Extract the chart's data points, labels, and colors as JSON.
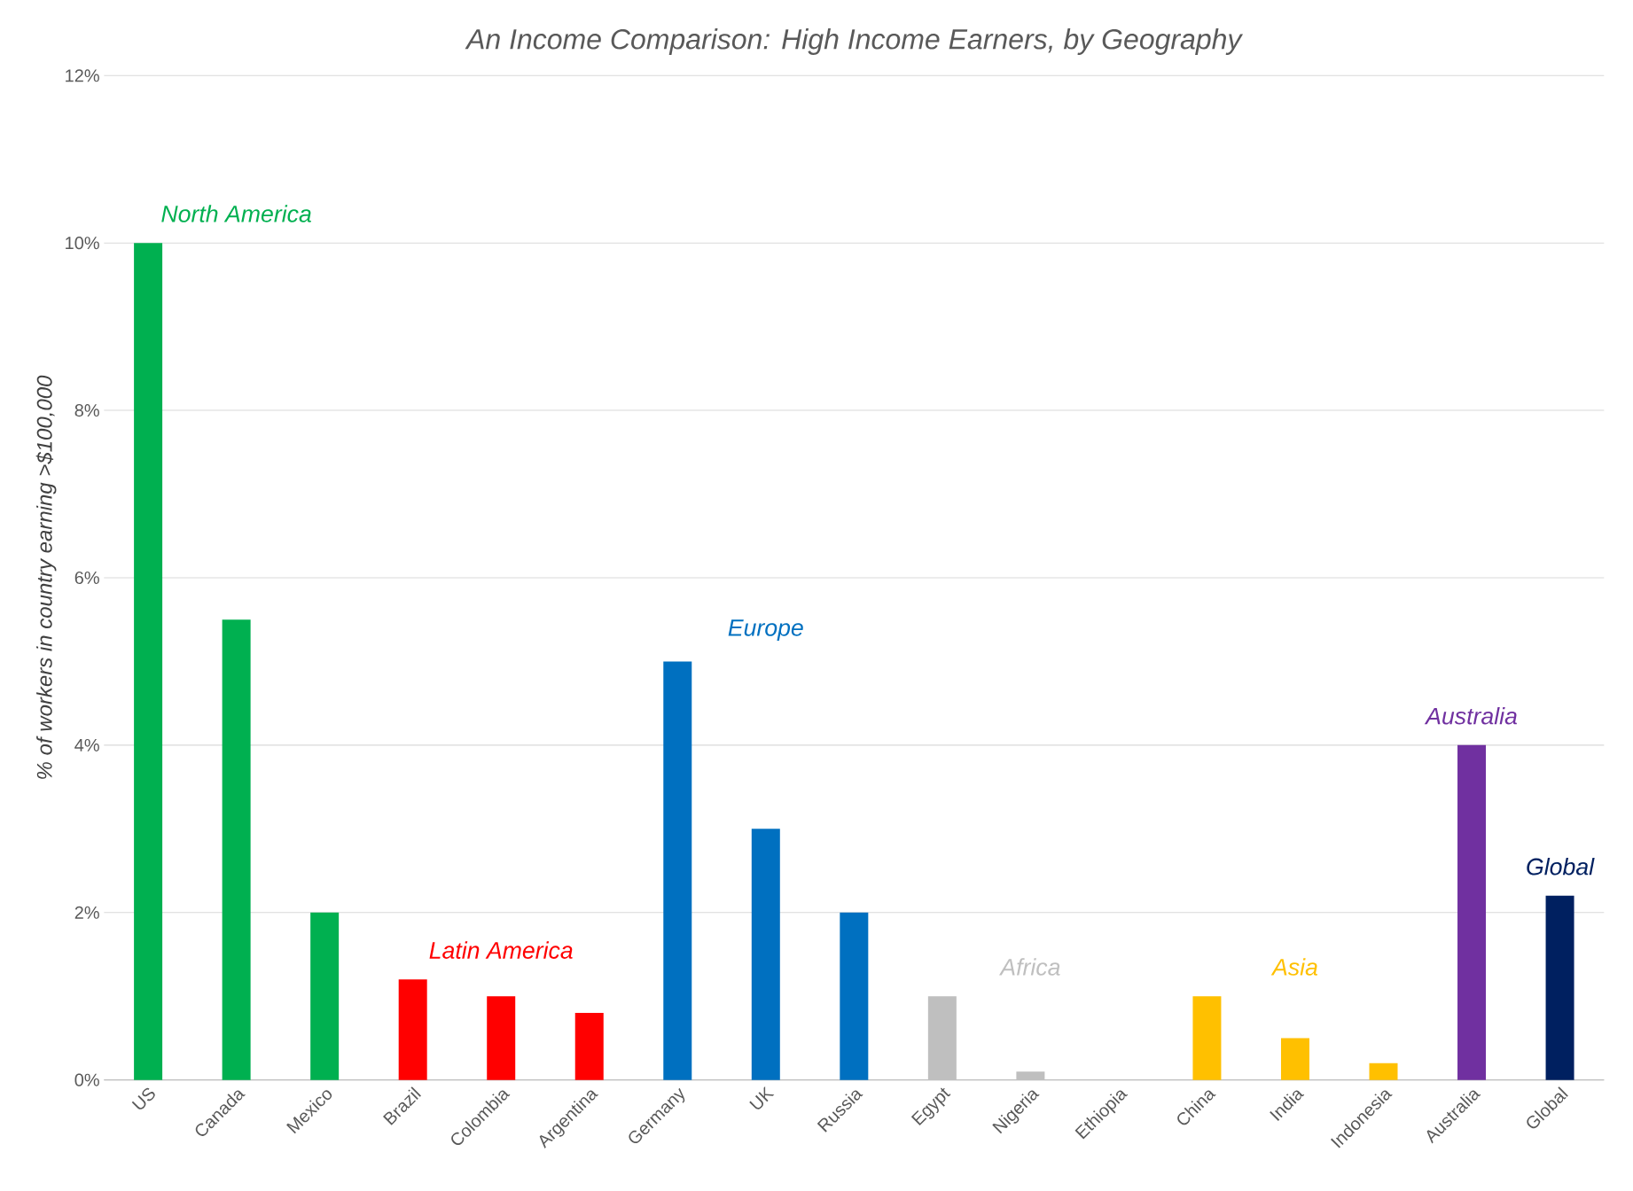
{
  "chart_data": {
    "type": "bar",
    "title": "An Income Comparison: High Income Earners, by Geography",
    "ylabel": "% of workers in country earning >$100,000",
    "categories": [
      "US",
      "Canada",
      "Mexico",
      "Brazil",
      "Colombia",
      "Argentina",
      "Germany",
      "UK",
      "Russia",
      "Egypt",
      "Nigeria",
      "Ethiopia",
      "China",
      "India",
      "Indonesia",
      "Australia",
      "Global"
    ],
    "values": [
      10,
      5.5,
      2,
      1.2,
      1.0,
      0.8,
      5,
      3,
      2,
      1,
      0.1,
      0,
      1,
      0.5,
      0.2,
      4,
      2.2
    ],
    "colors": [
      "#00b050",
      "#00b050",
      "#00b050",
      "#ff0000",
      "#ff0000",
      "#ff0000",
      "#0070c0",
      "#0070c0",
      "#0070c0",
      "#bfbfbf",
      "#bfbfbf",
      "#bfbfbf",
      "#ffc000",
      "#ffc000",
      "#ffc000",
      "#7030a0",
      "#002060"
    ],
    "ylim": [
      0,
      12
    ],
    "yticks": [
      {
        "value": 0,
        "label": "0%"
      },
      {
        "value": 2,
        "label": "2%"
      },
      {
        "value": 4,
        "label": "4%"
      },
      {
        "value": 6,
        "label": "6%"
      },
      {
        "value": 8,
        "label": "8%"
      },
      {
        "value": 10,
        "label": "10%"
      },
      {
        "value": 12,
        "label": "12%"
      }
    ],
    "grid": "y",
    "annotations": [
      "North America",
      "Latin America",
      "Europe",
      "Africa",
      "Asia",
      "Australia",
      "Global"
    ]
  }
}
